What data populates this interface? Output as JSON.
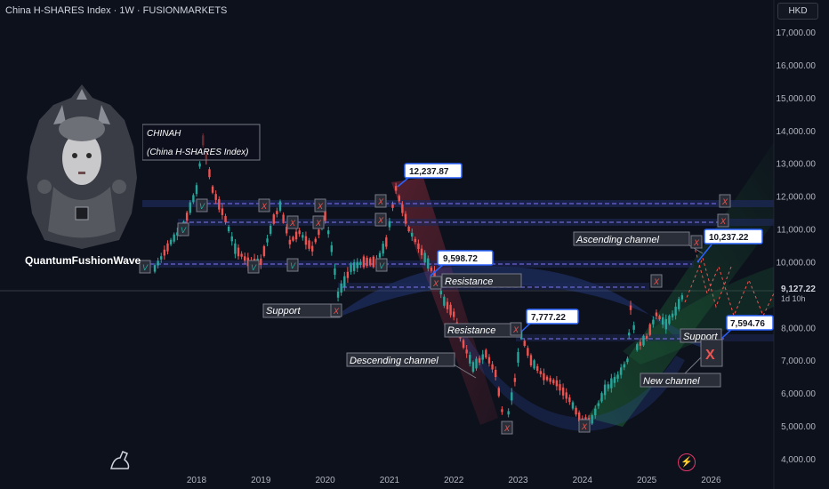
{
  "header": {
    "title": "China H-SHARES Index · 1W · FUSIONMARKETS",
    "currency": "HKD"
  },
  "price_tag": {
    "price": "9,127.22",
    "timer": "1d 10h"
  },
  "brand": "QuantumFushionWave",
  "colors": {
    "background": "#0d111c",
    "up": "#26a69a",
    "down": "#ef5350",
    "band": "#1e2a5a",
    "dashed": "#6e63d6",
    "channel_blue": "#2f4aa8",
    "channel_red": "#8a2a3a",
    "channel_green": "#1f6b3a",
    "callout_border": "#2962ff"
  },
  "chart_data": {
    "type": "candlestick",
    "title": "China H-SHARES Index · 1W · FUSIONMARKETS",
    "x_axis": {
      "ticks": [
        "2018",
        "2019",
        "2020",
        "2021",
        "2022",
        "2023",
        "2024",
        "2025",
        "2026"
      ]
    },
    "y_axis": {
      "ticks": [
        4000,
        5000,
        6000,
        7000,
        8000,
        9000,
        10000,
        11000,
        12000,
        13000,
        14000,
        15000,
        16000,
        17000
      ],
      "tick_labels": [
        "4,000.00",
        "5,000.00",
        "6,000.00",
        "7,000.00",
        "8,000.00",
        "9,000.00",
        "10,000.00",
        "11,000.00",
        "12,000.00",
        "13,000.00",
        "14,000.00",
        "15,000.00",
        "16,000.00",
        "17,000.00"
      ],
      "range": [
        3700,
        17400
      ]
    },
    "approx_path": [
      [
        "2017.35",
        9800
      ],
      [
        "2017.6",
        10600
      ],
      [
        "2017.8",
        11100
      ],
      [
        "2018.0",
        12200
      ],
      [
        "2018.1",
        13700
      ],
      [
        "2018.25",
        12200
      ],
      [
        "2018.45",
        11300
      ],
      [
        "2018.6",
        10400
      ],
      [
        "2018.8",
        10000
      ],
      [
        "2019.0",
        10000
      ],
      [
        "2019.2",
        11300
      ],
      [
        "2019.3",
        11700
      ],
      [
        "2019.45",
        10600
      ],
      [
        "2019.6",
        10900
      ],
      [
        "2019.8",
        10400
      ],
      [
        "2020.0",
        11400
      ],
      [
        "2020.1",
        10400
      ],
      [
        "2020.2",
        9000
      ],
      [
        "2020.4",
        9800
      ],
      [
        "2020.6",
        10000
      ],
      [
        "2020.8",
        10000
      ],
      [
        "2020.95",
        10600
      ],
      [
        "2021.1",
        12237.87
      ],
      [
        "2021.3",
        11000
      ],
      [
        "2021.5",
        10300
      ],
      [
        "2021.7",
        9598.72
      ],
      [
        "2021.85",
        8800
      ],
      [
        "2022.0",
        8400
      ],
      [
        "2022.15",
        7500
      ],
      [
        "2022.3",
        6800
      ],
      [
        "2022.5",
        7200
      ],
      [
        "2022.65",
        6600
      ],
      [
        "2022.8",
        4900
      ],
      [
        "2022.95",
        6400
      ],
      [
        "2023.05",
        7777.22
      ],
      [
        "2023.2",
        7000
      ],
      [
        "2023.4",
        6500
      ],
      [
        "2023.6",
        6300
      ],
      [
        "2023.8",
        5800
      ],
      [
        "2024.0",
        5100
      ],
      [
        "2024.15",
        5200
      ],
      [
        "2024.35",
        6100
      ],
      [
        "2024.55",
        6500
      ],
      [
        "2024.7",
        7000
      ],
      [
        "2024.75",
        8600
      ],
      [
        "2024.85",
        7400
      ],
      [
        "2025.0",
        7700
      ],
      [
        "2025.15",
        8400
      ],
      [
        "2025.3",
        8100
      ],
      [
        "2025.45",
        8500
      ],
      [
        "2025.6",
        9127.22
      ]
    ],
    "levels": [
      {
        "label": "12,237.87",
        "value": 12237.87
      },
      {
        "label": "9,598.72",
        "value": 9598.72
      },
      {
        "label": "7,777.22",
        "value": 7777.22
      },
      {
        "label": "10,237.22",
        "value": 10237.22
      },
      {
        "label": "7,594.76",
        "value": 7594.76
      }
    ],
    "annotations": {
      "chinah": "CHINAH",
      "chinah_sub": "(China H-SHARES Index)",
      "support": "Support",
      "resistance": "Resistance",
      "resistance2": "Resistance",
      "descending": "Descending channel",
      "ascending": "Ascending channel",
      "support2": "Support",
      "new_channel": "New channel"
    },
    "markers": {
      "v": "V",
      "x": "X"
    }
  }
}
